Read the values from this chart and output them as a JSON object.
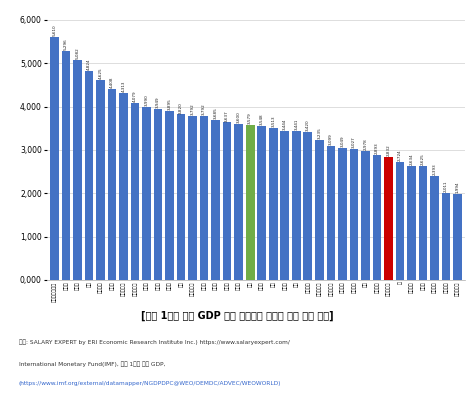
{
  "values": [
    5610,
    5296,
    5082,
    4824,
    4625,
    4408,
    4313,
    4079,
    3990,
    3949,
    3895,
    3820,
    3792,
    3792,
    3685,
    3637,
    3600,
    3579,
    3548,
    3513,
    3444,
    3441,
    3420,
    3235,
    3099,
    3049,
    3027,
    2978,
    2893,
    2832,
    2724,
    2634,
    2625,
    2393,
    2011,
    1994
  ],
  "bar_color_blue": "#4472c4",
  "bar_color_green": "#70ad47",
  "bar_color_red": "#cc0000",
  "green_index": 17,
  "red_index": 29,
  "title": "[국민 1인당 명목 GDP 대비 우리나라 고용직 의사 평균 연봉]",
  "source_line1": "자료: SALARY EXPERT by ERI Economic Research Institute Inc.) https://www.salaryexpert.com/",
  "source_line2": "International Monetary Fund(IMF), 국민 1인당 명목 GDP,",
  "source_line3": "(https://www.imf.org/external/datamapper/NGDPDPC@WEO/OEMDC/ADVEC/WEOWORLD)",
  "ylim": [
    0,
    6000
  ],
  "yticks": [
    0,
    1000,
    2000,
    3000,
    4000,
    5000,
    6000
  ],
  "ytick_labels": [
    "0,000",
    "1,000",
    "2,000",
    "3,000",
    "4,000",
    "5,000",
    "6,000"
  ],
  "x_labels": [
    "오스트레일리아",
    "벨기에",
    "그리스",
    "독일",
    "노르웨이",
    "이집트",
    "룩셈부르크",
    "슬로베니아",
    "캐나다",
    "덴마크",
    "스위스",
    "독도",
    "오스트리아",
    "스웨덴",
    "스페인",
    "기종영",
    "포르갈",
    "한국",
    "프랑스",
    "미국",
    "핀란드",
    "체코",
    "뉴질랜드",
    "오스트리아",
    "아이슬란드",
    "뉴질랜드",
    "아이랜드",
    "터키",
    "대한민국",
    "에스토니아",
    "스",
    "노르웨이",
    "스웨덴",
    "아일랜드",
    "뉴질랜드",
    "룩셈부르크"
  ],
  "value_labels": [
    "5,610",
    "5,296",
    "5,082",
    "4,824",
    "4,625",
    "4,408",
    "4,313",
    "4,079",
    "3,990",
    "3,949",
    "3,895",
    "3,820",
    "3,792",
    "3,792",
    "3,685",
    "3,637",
    "3,600",
    "3,579",
    "3,548",
    "3,513",
    "3,444",
    "3,441",
    "3,420",
    "3,235",
    "3,099",
    "3,049",
    "3,027",
    "2,978",
    "2,893",
    "2,832",
    "2,724",
    "2,634",
    "2,625",
    "2,393",
    "2,011",
    "1,994"
  ]
}
